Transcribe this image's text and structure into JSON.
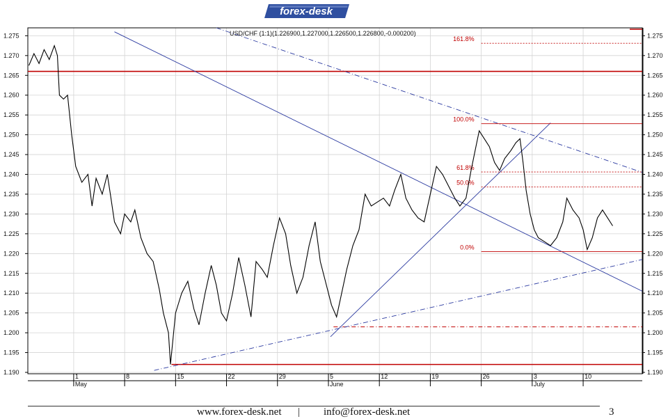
{
  "brand": {
    "logo_text": "forex-desk"
  },
  "chart_data": {
    "type": "line",
    "title": "USD/CHF (1:1)(1.226900,1.227000,1.226500,1.226800,-0.000200)",
    "ylim": [
      1.19,
      1.277
    ],
    "y_ticks": [
      "1.190",
      "1.195",
      "1.200",
      "1.205",
      "1.210",
      "1.215",
      "1.220",
      "1.225",
      "1.230",
      "1.235",
      "1.240",
      "1.245",
      "1.250",
      "1.255",
      "1.260",
      "1.265",
      "1.270",
      "1.275"
    ],
    "x_ticks": [
      {
        "day": "1",
        "month": "May",
        "t": 9
      },
      {
        "day": "8",
        "month": "",
        "t": 14
      },
      {
        "day": "15",
        "month": "",
        "t": 19
      },
      {
        "day": "22",
        "month": "",
        "t": 24
      },
      {
        "day": "29",
        "month": "",
        "t": 29
      },
      {
        "day": "5",
        "month": "June",
        "t": 34
      },
      {
        "day": "12",
        "month": "",
        "t": 39
      },
      {
        "day": "19",
        "month": "",
        "t": 44
      },
      {
        "day": "26",
        "month": "",
        "t": 49
      },
      {
        "day": "3",
        "month": "July",
        "t": 54
      },
      {
        "day": "10",
        "month": "",
        "t": 59
      }
    ],
    "t_range": [
      4.5,
      64.8
    ],
    "series": [
      {
        "values": [
          [
            4.6,
            1.2675
          ],
          [
            5.1,
            1.2705
          ],
          [
            5.6,
            1.268
          ],
          [
            6.1,
            1.2715
          ],
          [
            6.6,
            1.269
          ],
          [
            7.1,
            1.2725
          ],
          [
            7.4,
            1.27
          ],
          [
            7.6,
            1.26
          ],
          [
            8.0,
            1.259
          ],
          [
            8.4,
            1.26
          ],
          [
            8.8,
            1.25
          ],
          [
            9.2,
            1.242
          ],
          [
            9.8,
            1.238
          ],
          [
            10.4,
            1.24
          ],
          [
            10.8,
            1.232
          ],
          [
            11.2,
            1.239
          ],
          [
            11.8,
            1.235
          ],
          [
            12.3,
            1.24
          ],
          [
            12.6,
            1.235
          ],
          [
            13.0,
            1.228
          ],
          [
            13.6,
            1.225
          ],
          [
            14.0,
            1.23
          ],
          [
            14.6,
            1.228
          ],
          [
            15.0,
            1.231
          ],
          [
            15.6,
            1.224
          ],
          [
            16.2,
            1.22
          ],
          [
            16.8,
            1.218
          ],
          [
            17.4,
            1.211
          ],
          [
            17.8,
            1.205
          ],
          [
            18.3,
            1.2
          ],
          [
            18.5,
            1.192
          ],
          [
            19.0,
            1.205
          ],
          [
            19.6,
            1.21
          ],
          [
            20.2,
            1.213
          ],
          [
            20.8,
            1.206
          ],
          [
            21.3,
            1.202
          ],
          [
            21.9,
            1.21
          ],
          [
            22.5,
            1.217
          ],
          [
            23.0,
            1.212
          ],
          [
            23.5,
            1.205
          ],
          [
            24.0,
            1.203
          ],
          [
            24.6,
            1.21
          ],
          [
            25.2,
            1.219
          ],
          [
            25.8,
            1.212
          ],
          [
            26.4,
            1.204
          ],
          [
            26.9,
            1.218
          ],
          [
            27.5,
            1.216
          ],
          [
            28.0,
            1.214
          ],
          [
            28.6,
            1.222
          ],
          [
            29.2,
            1.229
          ],
          [
            29.8,
            1.225
          ],
          [
            30.3,
            1.217
          ],
          [
            30.9,
            1.21
          ],
          [
            31.5,
            1.214
          ],
          [
            32.1,
            1.222
          ],
          [
            32.7,
            1.228
          ],
          [
            33.2,
            1.218
          ],
          [
            33.8,
            1.212
          ],
          [
            34.3,
            1.207
          ],
          [
            34.8,
            1.204
          ],
          [
            35.3,
            1.21
          ],
          [
            35.8,
            1.216
          ],
          [
            36.4,
            1.222
          ],
          [
            37.0,
            1.226
          ],
          [
            37.6,
            1.235
          ],
          [
            38.2,
            1.232
          ],
          [
            38.8,
            1.233
          ],
          [
            39.4,
            1.234
          ],
          [
            40.0,
            1.232
          ],
          [
            40.5,
            1.236
          ],
          [
            41.1,
            1.24
          ],
          [
            41.6,
            1.234
          ],
          [
            42.2,
            1.231
          ],
          [
            42.8,
            1.229
          ],
          [
            43.4,
            1.228
          ],
          [
            44.0,
            1.235
          ],
          [
            44.6,
            1.242
          ],
          [
            45.2,
            1.24
          ],
          [
            45.8,
            1.237
          ],
          [
            46.4,
            1.234
          ],
          [
            46.9,
            1.232
          ],
          [
            47.5,
            1.234
          ],
          [
            48.0,
            1.241
          ],
          [
            48.4,
            1.246
          ],
          [
            48.8,
            1.251
          ],
          [
            49.3,
            1.249
          ],
          [
            49.8,
            1.247
          ],
          [
            50.3,
            1.243
          ],
          [
            50.8,
            1.241
          ],
          [
            51.3,
            1.244
          ],
          [
            51.9,
            1.246
          ],
          [
            52.4,
            1.248
          ],
          [
            52.8,
            1.249
          ],
          [
            53.1,
            1.243
          ],
          [
            53.4,
            1.236
          ],
          [
            53.8,
            1.23
          ],
          [
            54.2,
            1.226
          ],
          [
            54.6,
            1.224
          ],
          [
            55.2,
            1.223
          ],
          [
            55.8,
            1.222
          ],
          [
            56.4,
            1.224
          ],
          [
            57.0,
            1.228
          ],
          [
            57.4,
            1.234
          ],
          [
            58.0,
            1.231
          ],
          [
            58.6,
            1.229
          ],
          [
            59.0,
            1.226
          ],
          [
            59.4,
            1.221
          ],
          [
            59.9,
            1.224
          ],
          [
            60.4,
            1.229
          ],
          [
            60.9,
            1.231
          ],
          [
            61.4,
            1.229
          ],
          [
            61.9,
            1.227
          ]
        ]
      }
    ],
    "horizontal_lines": [
      {
        "y": 1.266,
        "x0": 4.5,
        "x1": 64.8,
        "style": "solid"
      },
      {
        "y": 1.192,
        "x0": 18.6,
        "x1": 64.8,
        "style": "solid"
      },
      {
        "y": 1.2015,
        "x0": 34.5,
        "x1": 64.8,
        "style": "dashdot"
      }
    ],
    "trend_lines": [
      {
        "p0": [
          13.0,
          1.276
        ],
        "p1": [
          64.8,
          1.2105
        ],
        "style": "solid"
      },
      {
        "p0": [
          34.2,
          1.199
        ],
        "p1": [
          55.8,
          1.253
        ],
        "style": "solid"
      },
      {
        "p0": [
          16.9,
          1.1905
        ],
        "p1": [
          64.8,
          1.2185
        ],
        "style": "dashdot"
      },
      {
        "p0": [
          23.0,
          1.277
        ],
        "p1": [
          64.8,
          1.2405
        ],
        "style": "dashdot"
      }
    ],
    "fibonacci": {
      "x0": 49.0,
      "x1": 64.8,
      "levels": [
        {
          "label": "161.8%",
          "y": 1.2731
        },
        {
          "label": "100.0%",
          "y": 1.2528
        },
        {
          "label": "61.8%",
          "y": 1.2406
        },
        {
          "label": "50.0%",
          "y": 1.2368
        },
        {
          "label": "0.0%",
          "y": 1.2205
        }
      ]
    }
  },
  "footer": {
    "website": "www.forex-desk.net",
    "separator": "|",
    "email": "info@forex-desk.net",
    "page_number": "3"
  }
}
